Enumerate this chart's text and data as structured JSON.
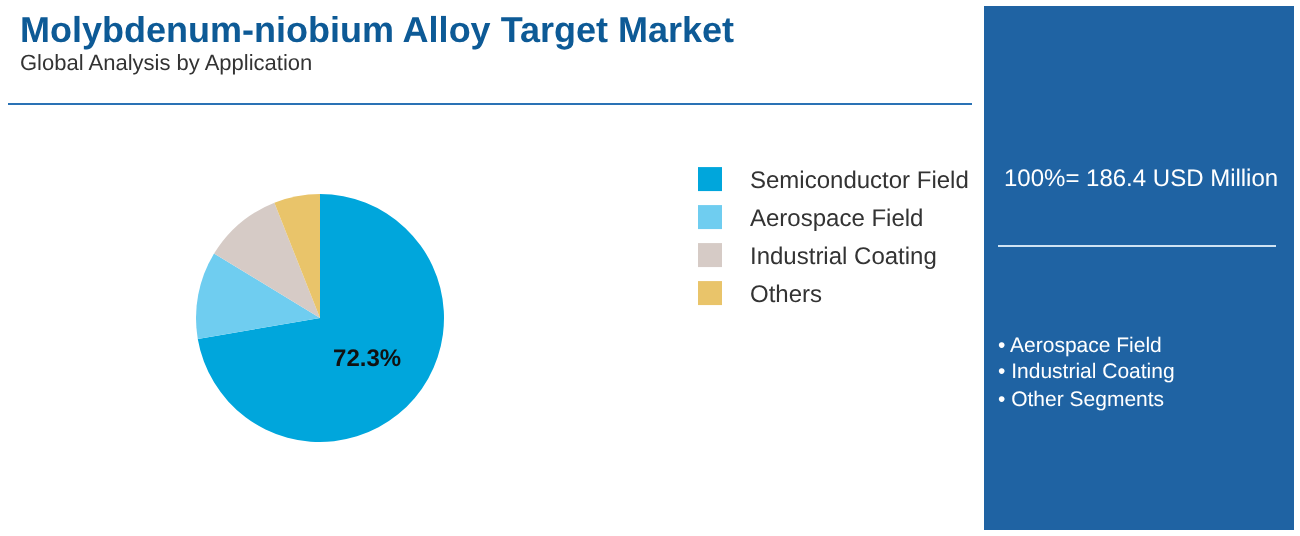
{
  "chart_data": {
    "type": "pie",
    "title": "Molybdenum-niobium Alloy Target Market",
    "subtitle": "Global Analysis by Application",
    "categories": [
      "Semiconductor Field",
      "Aerospace Field",
      "Industrial Coating",
      "Others"
    ],
    "values": [
      72.3,
      11.4,
      10.3,
      6.0
    ],
    "colors": [
      "#00a6dc",
      "#6fcdf0",
      "#d6cbc6",
      "#e9c46a"
    ],
    "value_labels": [
      "72.3%",
      null,
      null,
      null
    ],
    "legend": "right",
    "annotations": [
      "100%= 186.4 USD Million",
      "• Aerospace Field",
      "• Industrial Coating",
      "• Other Segments"
    ]
  }
}
